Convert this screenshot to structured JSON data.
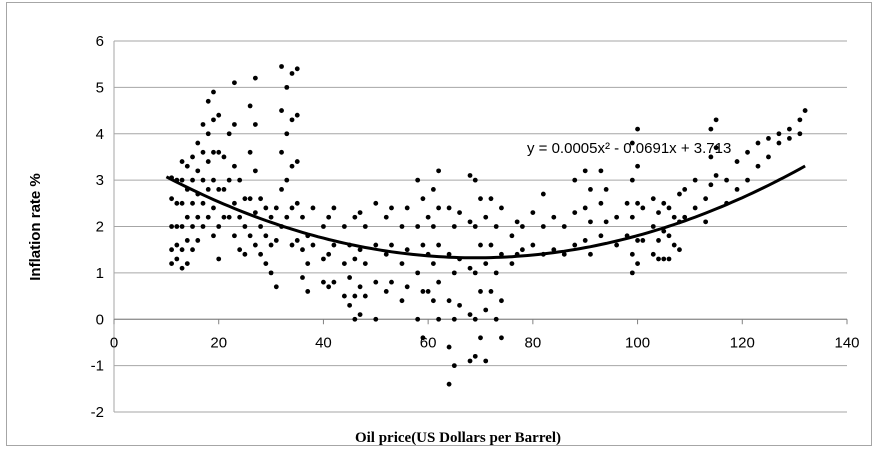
{
  "chart_data": {
    "type": "scatter",
    "title": "",
    "xlabel": "Oil price(US Dollars per Barrel)",
    "ylabel": "Inflation rate %",
    "xlim": [
      0,
      140
    ],
    "ylim": [
      -2,
      6
    ],
    "x_ticks": [
      "0",
      "20",
      "40",
      "60",
      "80",
      "100",
      "120",
      "140"
    ],
    "y_ticks": [
      "-2",
      "-1",
      "0",
      "1",
      "2",
      "3",
      "4",
      "5",
      "6"
    ],
    "grid": "horizontal",
    "legend": "none",
    "marker_color": "#000000",
    "trendline": {
      "type": "polynomial-2",
      "coefficients": [
        0.0005,
        -0.0691,
        3.713
      ],
      "equation_label": "y = 0.0005x² - 0.0691x + 3.713",
      "x_range": [
        10,
        132
      ]
    },
    "series": [
      {
        "points": [
          [
            11,
            3.05
          ],
          [
            11,
            2.6
          ],
          [
            11,
            2.0
          ],
          [
            11,
            1.5
          ],
          [
            11,
            1.2
          ],
          [
            12,
            3.0
          ],
          [
            12,
            2.5
          ],
          [
            12,
            2.0
          ],
          [
            12,
            1.6
          ],
          [
            12,
            1.3
          ],
          [
            13,
            3.4
          ],
          [
            13,
            3.0
          ],
          [
            13,
            2.5
          ],
          [
            13,
            2.0
          ],
          [
            13,
            1.5
          ],
          [
            13,
            1.1
          ],
          [
            14,
            3.3
          ],
          [
            14,
            2.8
          ],
          [
            14,
            2.2
          ],
          [
            14,
            1.7
          ],
          [
            14,
            1.2
          ],
          [
            15,
            3.5
          ],
          [
            15,
            3.0
          ],
          [
            15,
            2.5
          ],
          [
            15,
            2.0
          ],
          [
            15,
            1.5
          ],
          [
            16,
            3.8
          ],
          [
            16,
            3.2
          ],
          [
            16,
            2.7
          ],
          [
            16,
            2.2
          ],
          [
            16,
            1.7
          ],
          [
            17,
            4.2
          ],
          [
            17,
            3.6
          ],
          [
            17,
            3.0
          ],
          [
            17,
            2.5
          ],
          [
            17,
            2.0
          ],
          [
            18,
            4.7
          ],
          [
            18,
            4.0
          ],
          [
            18,
            3.4
          ],
          [
            18,
            2.8
          ],
          [
            18,
            2.2
          ],
          [
            19,
            4.9
          ],
          [
            19,
            4.3
          ],
          [
            19,
            3.6
          ],
          [
            19,
            3.0
          ],
          [
            19,
            2.4
          ],
          [
            19,
            1.8
          ],
          [
            20,
            4.4
          ],
          [
            20,
            3.6
          ],
          [
            20,
            2.8
          ],
          [
            20,
            2.0
          ],
          [
            20,
            1.3
          ],
          [
            21,
            3.5
          ],
          [
            21,
            2.8
          ],
          [
            21,
            2.2
          ],
          [
            22,
            4.0
          ],
          [
            22,
            3.0
          ],
          [
            22,
            2.2
          ],
          [
            23,
            5.1
          ],
          [
            23,
            4.2
          ],
          [
            23,
            3.3
          ],
          [
            23,
            2.5
          ],
          [
            23,
            1.8
          ],
          [
            24,
            3.0
          ],
          [
            24,
            2.2
          ],
          [
            24,
            1.5
          ],
          [
            25,
            2.6
          ],
          [
            25,
            2.0
          ],
          [
            25,
            1.4
          ],
          [
            26,
            4.6
          ],
          [
            26,
            3.6
          ],
          [
            26,
            2.6
          ],
          [
            26,
            1.8
          ],
          [
            27,
            5.2
          ],
          [
            27,
            4.2
          ],
          [
            27,
            3.2
          ],
          [
            27,
            2.3
          ],
          [
            27,
            1.6
          ],
          [
            28,
            2.6
          ],
          [
            28,
            2.0
          ],
          [
            28,
            1.4
          ],
          [
            29,
            2.4
          ],
          [
            29,
            1.8
          ],
          [
            29,
            1.2
          ],
          [
            30,
            2.2
          ],
          [
            30,
            1.6
          ],
          [
            30,
            1.0
          ],
          [
            31,
            2.4
          ],
          [
            31,
            1.7
          ],
          [
            31,
            0.7
          ],
          [
            32,
            5.45
          ],
          [
            32,
            4.5
          ],
          [
            32,
            3.6
          ],
          [
            32,
            2.8
          ],
          [
            32,
            2.0
          ],
          [
            33,
            5.0
          ],
          [
            33,
            4.0
          ],
          [
            33,
            3.0
          ],
          [
            33,
            2.2
          ],
          [
            34,
            5.3
          ],
          [
            34,
            4.3
          ],
          [
            34,
            3.3
          ],
          [
            34,
            2.4
          ],
          [
            34,
            1.6
          ],
          [
            35,
            5.4
          ],
          [
            35,
            4.4
          ],
          [
            35,
            3.4
          ],
          [
            35,
            2.5
          ],
          [
            35,
            1.7
          ],
          [
            36,
            2.2
          ],
          [
            36,
            1.5
          ],
          [
            36,
            0.9
          ],
          [
            37,
            1.8
          ],
          [
            37,
            1.2
          ],
          [
            37,
            0.6
          ],
          [
            38,
            2.4
          ],
          [
            38,
            1.6
          ],
          [
            40,
            2.0
          ],
          [
            40,
            1.3
          ],
          [
            40,
            0.8
          ],
          [
            41,
            2.2
          ],
          [
            41,
            1.4
          ],
          [
            41,
            0.7
          ],
          [
            42,
            2.4
          ],
          [
            42,
            1.6
          ],
          [
            42,
            0.8
          ],
          [
            44,
            2.0
          ],
          [
            44,
            1.2
          ],
          [
            44,
            0.5
          ],
          [
            45,
            1.6
          ],
          [
            45,
            0.9
          ],
          [
            45,
            0.3
          ],
          [
            46,
            2.2
          ],
          [
            46,
            1.3
          ],
          [
            46,
            0.5
          ],
          [
            46,
            0.0
          ],
          [
            47,
            2.3
          ],
          [
            47,
            1.5
          ],
          [
            47,
            0.7
          ],
          [
            47,
            0.1
          ],
          [
            48,
            2.0
          ],
          [
            48,
            1.2
          ],
          [
            48,
            0.5
          ],
          [
            50,
            2.5
          ],
          [
            50,
            1.6
          ],
          [
            50,
            0.8
          ],
          [
            50,
            0.0
          ],
          [
            52,
            2.2
          ],
          [
            52,
            1.4
          ],
          [
            52,
            0.6
          ],
          [
            53,
            2.4
          ],
          [
            53,
            1.6
          ],
          [
            53,
            0.8
          ],
          [
            55,
            2.0
          ],
          [
            55,
            1.2
          ],
          [
            55,
            0.4
          ],
          [
            56,
            2.4
          ],
          [
            56,
            1.5
          ],
          [
            56,
            0.7
          ],
          [
            58,
            3.0
          ],
          [
            58,
            2.0
          ],
          [
            58,
            1.0
          ],
          [
            58,
            0.0
          ],
          [
            59,
            2.6
          ],
          [
            59,
            1.6
          ],
          [
            59,
            0.6
          ],
          [
            59,
            -0.4
          ],
          [
            60,
            2.2
          ],
          [
            60,
            1.4
          ],
          [
            60,
            0.6
          ],
          [
            61,
            2.8
          ],
          [
            61,
            2.0
          ],
          [
            61,
            1.2
          ],
          [
            61,
            0.4
          ],
          [
            62,
            3.2
          ],
          [
            62,
            2.4
          ],
          [
            62,
            1.6
          ],
          [
            62,
            0.8
          ],
          [
            62,
            0.0
          ],
          [
            64,
            2.4
          ],
          [
            64,
            1.4
          ],
          [
            64,
            0.4
          ],
          [
            64,
            -0.6
          ],
          [
            64,
            -1.4
          ],
          [
            65,
            2.0
          ],
          [
            65,
            1.0
          ],
          [
            65,
            0.0
          ],
          [
            65,
            -1.0
          ],
          [
            66,
            2.3
          ],
          [
            66,
            1.3
          ],
          [
            66,
            0.3
          ],
          [
            68,
            3.1
          ],
          [
            68,
            2.1
          ],
          [
            68,
            1.1
          ],
          [
            68,
            0.1
          ],
          [
            68,
            -0.9
          ],
          [
            69,
            3.0
          ],
          [
            69,
            2.0
          ],
          [
            69,
            1.0
          ],
          [
            69,
            0.0
          ],
          [
            69,
            -0.8
          ],
          [
            70,
            2.6
          ],
          [
            70,
            1.6
          ],
          [
            70,
            0.6
          ],
          [
            70,
            -0.4
          ],
          [
            71,
            2.2
          ],
          [
            71,
            1.2
          ],
          [
            71,
            0.2
          ],
          [
            71,
            -0.9
          ],
          [
            72,
            2.6
          ],
          [
            72,
            1.6
          ],
          [
            72,
            0.6
          ],
          [
            73,
            2.0
          ],
          [
            73,
            1.0
          ],
          [
            73,
            0.0
          ],
          [
            74,
            2.4
          ],
          [
            74,
            1.4
          ],
          [
            74,
            0.4
          ],
          [
            74,
            -0.4
          ],
          [
            76,
            1.8
          ],
          [
            76,
            1.2
          ],
          [
            77,
            2.1
          ],
          [
            77,
            1.4
          ],
          [
            78,
            2.0
          ],
          [
            78,
            1.5
          ],
          [
            80,
            2.3
          ],
          [
            80,
            1.6
          ],
          [
            82,
            2.7
          ],
          [
            82,
            2.0
          ],
          [
            82,
            1.4
          ],
          [
            84,
            2.2
          ],
          [
            84,
            1.5
          ],
          [
            86,
            2.0
          ],
          [
            86,
            1.4
          ],
          [
            88,
            3.0
          ],
          [
            88,
            2.3
          ],
          [
            88,
            1.6
          ],
          [
            90,
            3.2
          ],
          [
            90,
            2.4
          ],
          [
            90,
            1.7
          ],
          [
            91,
            2.8
          ],
          [
            91,
            2.1
          ],
          [
            91,
            1.4
          ],
          [
            93,
            3.2
          ],
          [
            93,
            2.5
          ],
          [
            93,
            1.8
          ],
          [
            94,
            2.8
          ],
          [
            94,
            2.1
          ],
          [
            96,
            2.2
          ],
          [
            96,
            1.6
          ],
          [
            98,
            2.5
          ],
          [
            98,
            1.8
          ],
          [
            99,
            3.8
          ],
          [
            99,
            3.0
          ],
          [
            99,
            2.2
          ],
          [
            99,
            1.4
          ],
          [
            99,
            1.0
          ],
          [
            100,
            4.1
          ],
          [
            100,
            3.3
          ],
          [
            100,
            2.5
          ],
          [
            100,
            1.7
          ],
          [
            100,
            1.2
          ],
          [
            101,
            2.4
          ],
          [
            101,
            1.7
          ],
          [
            103,
            2.6
          ],
          [
            103,
            2.0
          ],
          [
            103,
            1.4
          ],
          [
            104,
            2.3
          ],
          [
            104,
            1.7
          ],
          [
            104,
            1.3
          ],
          [
            105,
            2.5
          ],
          [
            105,
            1.9
          ],
          [
            105,
            1.3
          ],
          [
            106,
            2.4
          ],
          [
            106,
            1.8
          ],
          [
            106,
            1.3
          ],
          [
            107,
            2.2
          ],
          [
            107,
            1.6
          ],
          [
            108,
            2.7
          ],
          [
            108,
            2.1
          ],
          [
            108,
            1.5
          ],
          [
            109,
            2.8
          ],
          [
            109,
            2.2
          ],
          [
            111,
            3.0
          ],
          [
            111,
            2.4
          ],
          [
            113,
            2.6
          ],
          [
            113,
            2.1
          ],
          [
            114,
            4.1
          ],
          [
            114,
            3.5
          ],
          [
            114,
            2.9
          ],
          [
            115,
            4.3
          ],
          [
            115,
            3.7
          ],
          [
            115,
            3.1
          ],
          [
            117,
            3.0
          ],
          [
            117,
            2.5
          ],
          [
            119,
            3.4
          ],
          [
            119,
            2.8
          ],
          [
            121,
            3.6
          ],
          [
            121,
            3.0
          ],
          [
            123,
            3.8
          ],
          [
            123,
            3.3
          ],
          [
            125,
            3.9
          ],
          [
            125,
            3.5
          ],
          [
            127,
            4.0
          ],
          [
            127,
            3.8
          ],
          [
            129,
            4.1
          ],
          [
            129,
            3.9
          ],
          [
            131,
            4.3
          ],
          [
            131,
            4.0
          ],
          [
            132,
            4.5
          ]
        ]
      }
    ]
  }
}
